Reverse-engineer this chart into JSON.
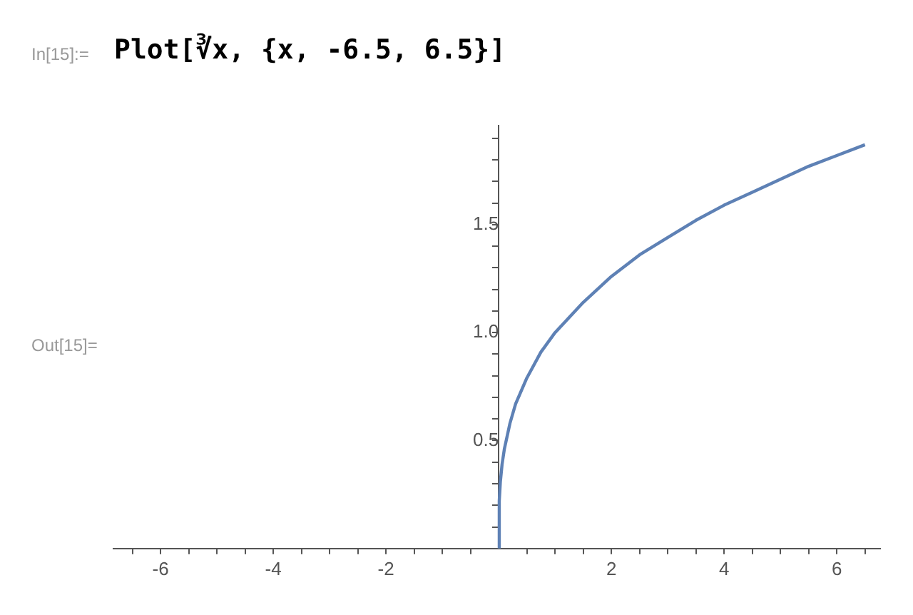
{
  "chart_data": {
    "type": "line",
    "annotations": [
      "In[15]:=",
      "Plot[∛x, {x, -6.5, 6.5}]",
      "Out[15]="
    ],
    "x": [
      0,
      0.01,
      0.03,
      0.06,
      0.1,
      0.2,
      0.3,
      0.5,
      0.75,
      1,
      1.5,
      2,
      2.5,
      3,
      3.5,
      4,
      4.5,
      5,
      5.5,
      6,
      6.5
    ],
    "series": [
      {
        "color": "#5e81b5",
        "values": [
          0,
          0.22,
          0.31,
          0.39,
          0.46,
          0.58,
          0.67,
          0.79,
          0.91,
          1,
          1.14,
          1.26,
          1.36,
          1.44,
          1.52,
          1.59,
          1.65,
          1.71,
          1.77,
          1.82,
          1.87
        ]
      }
    ],
    "xlim": [
      -6.85,
      6.77
    ],
    "xticks": [
      {
        "value": -6.5,
        "label": null
      },
      -6,
      {
        "value": -5.5,
        "label": null
      },
      {
        "value": -5,
        "label": null
      },
      {
        "value": -4.5,
        "label": null
      },
      -4,
      {
        "value": -3.5,
        "label": null
      },
      {
        "value": -3,
        "label": null
      },
      {
        "value": -2.5,
        "label": null
      },
      -2,
      {
        "value": -1.5,
        "label": null
      },
      {
        "value": -1,
        "label": null
      },
      {
        "value": -0.5,
        "label": null
      },
      {
        "value": 0.5,
        "label": null
      },
      {
        "value": 1,
        "label": null
      },
      {
        "value": 1.5,
        "label": null
      },
      2,
      {
        "value": 2.5,
        "label": null
      },
      {
        "value": 3,
        "label": null
      },
      {
        "value": 3.5,
        "label": null
      },
      4,
      {
        "value": 4.5,
        "label": null
      },
      {
        "value": 5,
        "label": null
      },
      {
        "value": 5.5,
        "label": null
      },
      6,
      {
        "value": 6.5,
        "label": null
      }
    ],
    "ylim": [
      0,
      1.96
    ],
    "yticks": [
      {
        "value": 0.1,
        "label": null
      },
      {
        "value": 0.2,
        "label": null
      },
      {
        "value": 0.3,
        "label": null
      },
      {
        "value": 0.4,
        "label": null
      },
      0.5,
      {
        "value": 0.6,
        "label": null
      },
      {
        "value": 0.7,
        "label": null
      },
      {
        "value": 0.8,
        "label": null
      },
      {
        "value": 0.9,
        "label": null
      },
      {
        "value": 1,
        "label": "1.0"
      },
      {
        "value": 1.1,
        "label": null
      },
      {
        "value": 1.2,
        "label": null
      },
      {
        "value": 1.3,
        "label": null
      },
      {
        "value": 1.4,
        "label": null
      },
      1.5,
      {
        "value": 1.6,
        "label": null
      },
      {
        "value": 1.7,
        "label": null
      },
      {
        "value": 1.8,
        "label": null
      },
      {
        "value": 1.9,
        "label": null
      }
    ],
    "marker": "none",
    "line_style": "solid"
  }
}
